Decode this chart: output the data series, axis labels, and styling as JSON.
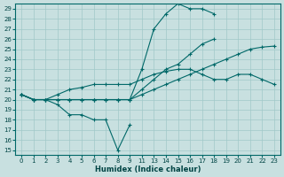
{
  "xlabel": "Humidex (Indice chaleur)",
  "background_color": "#c8e0e0",
  "grid_color": "#a0c8c8",
  "line_color": "#006868",
  "x_tick_labels": [
    "0",
    "1",
    "2",
    "3",
    "4",
    "5",
    "6",
    "7",
    "8",
    "9",
    "11",
    "13",
    "14",
    "15",
    "16",
    "17",
    "18",
    "19",
    "20",
    "21",
    "22",
    "23"
  ],
  "ylim": [
    14.5,
    29.5
  ],
  "yticks": [
    15,
    16,
    17,
    18,
    19,
    20,
    21,
    22,
    23,
    24,
    25,
    26,
    27,
    28,
    29
  ],
  "series": [
    {
      "xi": [
        0,
        1,
        2,
        3,
        4,
        5,
        6,
        7,
        8,
        9
      ],
      "y": [
        20.5,
        20.0,
        20.0,
        19.5,
        18.5,
        18.5,
        18.0,
        18.0,
        15.0,
        17.5
      ]
    },
    {
      "xi": [
        0,
        1,
        2,
        3,
        4,
        5,
        6,
        7,
        8,
        9,
        10,
        11,
        12,
        13,
        14,
        15,
        16,
        17,
        18,
        19,
        20,
        21
      ],
      "y": [
        20.5,
        20.0,
        20.0,
        20.0,
        20.0,
        20.0,
        20.0,
        20.0,
        20.0,
        20.0,
        20.5,
        21.0,
        21.5,
        22.0,
        22.5,
        23.0,
        23.5,
        24.0,
        24.5,
        25.0,
        25.2,
        25.3
      ]
    },
    {
      "xi": [
        0,
        1,
        2,
        3,
        4,
        5,
        6,
        7,
        8,
        9,
        10,
        11,
        12,
        13,
        14,
        15,
        16
      ],
      "y": [
        20.5,
        20.0,
        20.0,
        20.0,
        20.0,
        20.0,
        20.0,
        20.0,
        20.0,
        20.0,
        21.0,
        22.0,
        23.0,
        23.5,
        24.5,
        25.5,
        26.0
      ]
    },
    {
      "xi": [
        0,
        1,
        2,
        3,
        4,
        5,
        6,
        7,
        8,
        9,
        10,
        11,
        12,
        13,
        14,
        15,
        16
      ],
      "y": [
        20.5,
        20.0,
        20.0,
        20.0,
        20.0,
        20.0,
        20.0,
        20.0,
        20.0,
        20.0,
        23.0,
        27.0,
        28.5,
        29.5,
        29.0,
        29.0,
        28.5
      ]
    },
    {
      "xi": [
        0,
        1,
        2,
        3,
        4,
        5,
        6,
        7,
        8,
        9,
        10,
        11,
        12,
        13,
        14,
        15,
        16,
        17,
        18,
        19,
        20,
        21
      ],
      "y": [
        20.5,
        20.0,
        20.0,
        20.5,
        21.0,
        21.2,
        21.5,
        21.5,
        21.5,
        21.5,
        22.0,
        22.5,
        22.8,
        23.0,
        23.0,
        22.5,
        22.0,
        22.0,
        22.5,
        22.5,
        22.0,
        21.5
      ]
    }
  ]
}
